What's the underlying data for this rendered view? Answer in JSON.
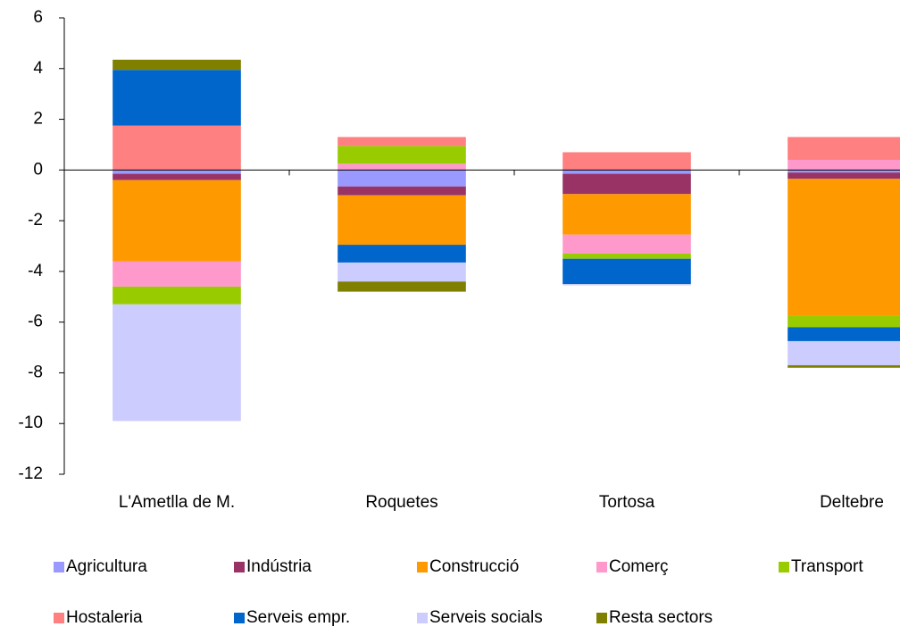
{
  "chart_data": {
    "type": "stacked_bar",
    "categories": [
      "L'Ametlla de M.",
      "Roquetes",
      "Tortosa",
      "Deltebre"
    ],
    "series": [
      {
        "name": "Agricultura",
        "color": "#9999ff",
        "values": [
          -0.15,
          -0.65,
          -0.15,
          -0.1
        ]
      },
      {
        "name": "Indústria",
        "color": "#993366",
        "values": [
          -0.25,
          -0.35,
          -0.8,
          -0.25
        ]
      },
      {
        "name": "Construcció",
        "color": "#ff9900",
        "values": [
          -3.2,
          -1.95,
          -1.6,
          -5.4
        ]
      },
      {
        "name": "Comerç",
        "color": "#ff99cc",
        "values": [
          -1.0,
          0.25,
          -0.75,
          0.4
        ]
      },
      {
        "name": "Transport",
        "color": "#99cc00",
        "values": [
          -0.7,
          0.7,
          -0.2,
          -0.45
        ]
      },
      {
        "name": "Hostaleria",
        "color": "#ff8080",
        "values": [
          1.75,
          0.35,
          0.7,
          0.9
        ]
      },
      {
        "name": "Serveis empr.",
        "color": "#0066cc",
        "values": [
          2.2,
          -0.7,
          -1.0,
          -0.55
        ]
      },
      {
        "name": "Serveis socials",
        "color": "#ccccff",
        "values": [
          -4.6,
          -0.75,
          -0.05,
          -0.95
        ]
      },
      {
        "name": "Resta sectors",
        "color": "#808000",
        "values": [
          0.4,
          -0.4,
          0,
          -0.1
        ]
      }
    ],
    "ylim": [
      -12,
      6
    ],
    "yticks": [
      -12,
      -10,
      -8,
      -6,
      -4,
      -2,
      0,
      2,
      4,
      6
    ],
    "grid": false
  }
}
